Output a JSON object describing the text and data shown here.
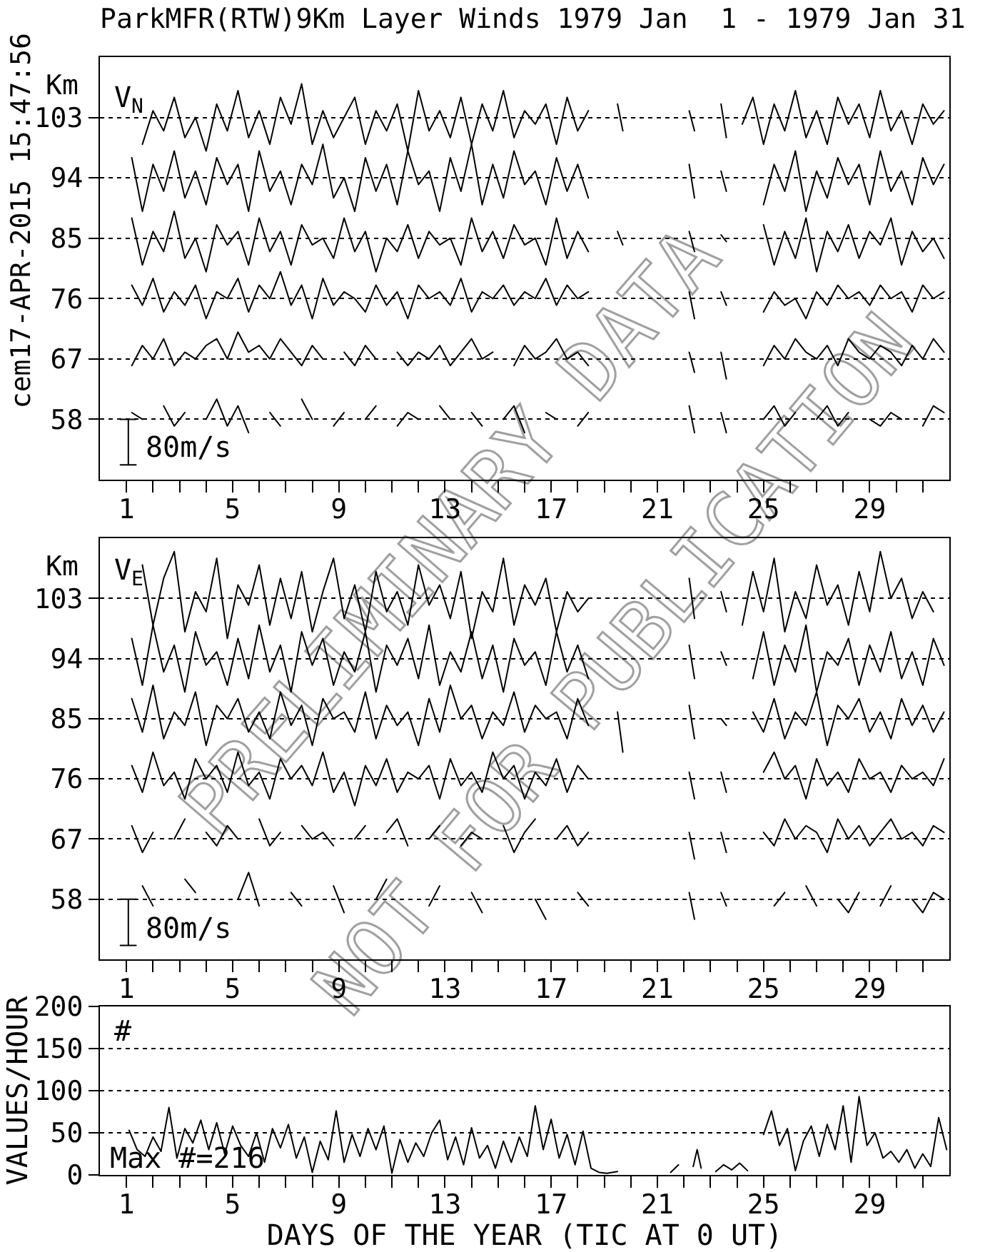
{
  "chart_data": [
    {
      "type": "line",
      "title": "ParkMFR(RTW)9Km Layer Winds 1979 Jan  1 - 1979 Jan 31",
      "ylabel": "Km",
      "grid": "y",
      "annotations": [
        "V$_{N}$",
        "cem17-APR-2015 15:47:56",
        "80m/s"
      ],
      "xlim": [
        0,
        32
      ],
      "ylim": [
        49,
        112
      ],
      "yticks": [
        58,
        67,
        76,
        85,
        94,
        103
      ],
      "xticks": [
        1,
        {
          "value": 2,
          "label": null
        },
        {
          "value": 3,
          "label": null
        },
        {
          "value": 4,
          "label": null
        },
        5,
        {
          "value": 6,
          "label": null
        },
        {
          "value": 7,
          "label": null
        },
        {
          "value": 8,
          "label": null
        },
        9,
        {
          "value": 10,
          "label": null
        },
        {
          "value": 11,
          "label": null
        },
        {
          "value": 12,
          "label": null
        },
        13,
        {
          "value": 14,
          "label": null
        },
        {
          "value": 15,
          "label": null
        },
        {
          "value": 16,
          "label": null
        },
        17,
        {
          "value": 18,
          "label": null
        },
        {
          "value": 19,
          "label": null
        },
        {
          "value": 20,
          "label": null
        },
        21,
        {
          "value": 22,
          "label": null
        },
        {
          "value": 23,
          "label": null
        },
        {
          "value": 24,
          "label": null
        },
        25,
        {
          "value": 26,
          "label": null
        },
        {
          "value": 27,
          "label": null
        },
        {
          "value": 28,
          "label": null
        },
        29,
        {
          "value": 30,
          "label": null
        },
        {
          "value": 31,
          "label": null
        }
      ],
      "x": [
        1.2,
        1.6,
        2.0,
        2.4,
        2.8,
        3.2,
        3.6,
        4.0,
        4.4,
        4.8,
        5.2,
        5.6,
        6.0,
        6.4,
        6.8,
        7.2,
        7.6,
        8.0,
        8.4,
        8.8,
        9.2,
        9.6,
        10.0,
        10.4,
        10.8,
        11.2,
        11.6,
        12.0,
        12.4,
        12.8,
        13.2,
        13.6,
        14.0,
        14.4,
        14.8,
        15.2,
        15.6,
        16.0,
        16.4,
        16.8,
        17.2,
        17.6,
        18.0,
        18.4,
        19.0,
        19.5,
        19.7,
        21.0,
        22.2,
        22.4,
        23.0,
        23.4,
        23.6,
        23.9,
        24.2,
        24.6,
        25.0,
        25.4,
        25.8,
        26.2,
        26.6,
        27.0,
        27.4,
        27.8,
        28.2,
        28.6,
        29.0,
        29.4,
        29.8,
        30.2,
        30.6,
        31.0,
        31.4,
        31.8
      ],
      "series": [
        {
          "color": "#000000",
          "values": [
            null,
            99,
            104,
            101,
            106,
            100,
            103,
            98,
            105,
            101,
            107,
            100,
            104,
            99,
            106,
            102,
            108,
            99,
            104,
            100,
            103,
            106,
            99,
            104,
            101,
            105,
            98,
            107,
            101,
            104,
            100,
            106,
            99,
            105,
            101,
            107,
            100,
            104,
            102,
            105,
            99,
            106,
            101,
            104,
            null,
            105,
            101,
            null,
            104,
            101,
            null,
            105,
            100,
            null,
            102,
            106,
            99,
            105,
            101,
            107,
            100,
            104,
            99,
            106,
            102,
            105,
            100,
            107,
            101,
            104,
            99,
            105,
            102,
            104
          ]
        },
        {
          "color": "#000000",
          "values": [
            97,
            89,
            96,
            92,
            98,
            91,
            95,
            90,
            97,
            93,
            96,
            89,
            98,
            92,
            95,
            90,
            96,
            93,
            99,
            91,
            94,
            89,
            97,
            92,
            96,
            90,
            98,
            93,
            95,
            89,
            97,
            92,
            99,
            90,
            96,
            91,
            98,
            93,
            95,
            90,
            97,
            92,
            96,
            91,
            null,
            null,
            null,
            null,
            96,
            91,
            null,
            95,
            92,
            null,
            null,
            null,
            90,
            96,
            92,
            98,
            89,
            95,
            91,
            97,
            93,
            96,
            90,
            98,
            92,
            95,
            90,
            97,
            93,
            96
          ]
        },
        {
          "color": "#000000",
          "values": [
            88,
            81,
            86,
            83,
            89,
            82,
            85,
            80,
            87,
            84,
            86,
            81,
            88,
            83,
            86,
            81,
            87,
            84,
            85,
            82,
            88,
            83,
            86,
            80,
            85,
            83,
            87,
            82,
            86,
            84,
            85,
            81,
            88,
            83,
            86,
            82,
            87,
            84,
            85,
            81,
            88,
            82,
            86,
            83,
            null,
            86,
            84,
            null,
            86,
            83,
            null,
            85.5,
            84.5,
            null,
            null,
            null,
            87,
            81,
            86,
            82,
            88,
            80,
            86,
            83,
            87,
            82,
            86,
            84,
            88,
            81,
            86,
            83,
            85,
            82
          ]
        },
        {
          "color": "#000000",
          "values": [
            78,
            75,
            79,
            74,
            77,
            75,
            78,
            73,
            77,
            76,
            79,
            74,
            78,
            76,
            80,
            75,
            78,
            73,
            79,
            75,
            77,
            76,
            74,
            78,
            75,
            77,
            73,
            78,
            76,
            77,
            75,
            79,
            74,
            77,
            76,
            78,
            75,
            77,
            76,
            79,
            75,
            78,
            76,
            77,
            null,
            null,
            null,
            null,
            77,
            73,
            null,
            77,
            75,
            null,
            null,
            null,
            74,
            77,
            75,
            76,
            73,
            77,
            75,
            78,
            76,
            77,
            75,
            78,
            76,
            77,
            74,
            78,
            76,
            77
          ]
        },
        {
          "color": "#000000",
          "values": [
            66,
            69,
            67,
            70,
            66,
            68,
            67,
            69,
            70,
            67,
            71,
            68,
            69,
            67,
            70,
            68,
            66,
            69,
            67,
            null,
            68,
            66,
            69,
            67,
            null,
            68,
            66,
            68,
            67,
            69,
            66,
            68,
            70,
            67,
            68,
            null,
            66,
            69,
            67,
            68,
            70,
            67,
            68,
            66,
            null,
            null,
            null,
            null,
            68,
            65,
            null,
            68,
            64,
            null,
            null,
            null,
            66,
            69,
            67,
            70,
            68,
            67,
            69,
            66,
            70,
            68,
            67,
            69,
            68,
            66,
            69,
            67,
            70,
            68
          ]
        },
        {
          "color": "#000000",
          "values": [
            59,
            58,
            null,
            60,
            57,
            59,
            null,
            58,
            61,
            57,
            60,
            56,
            null,
            59,
            57,
            null,
            61,
            58,
            null,
            57,
            59,
            null,
            58,
            60,
            null,
            57,
            59,
            58,
            null,
            60,
            58,
            null,
            59,
            57,
            null,
            58,
            60,
            56,
            null,
            59,
            58,
            null,
            57,
            59,
            null,
            null,
            null,
            null,
            60,
            56,
            null,
            59,
            56,
            null,
            null,
            null,
            58,
            60,
            57,
            59,
            null,
            58,
            60,
            57,
            59,
            null,
            58,
            57,
            59,
            58,
            null,
            57,
            60,
            59
          ]
        },
        {
          "color": "#000000",
          "x": [
            0.77,
            1.36,
            1.07,
            1.07,
            0.77,
            1.36
          ],
          "values": [
            58,
            58,
            58,
            51.2,
            51.2,
            51.2
          ]
        }
      ]
    },
    {
      "type": "line",
      "ylabel": "Km",
      "grid": "y",
      "annotations": [
        "V$_{E}$",
        "PRELIMINARY DATA",
        "NOT FOR PUBLICATION",
        "80m/s"
      ],
      "xlim": [
        0,
        32
      ],
      "ylim": [
        49,
        112
      ],
      "yticks": [
        58,
        67,
        76,
        85,
        94,
        103
      ],
      "xticks": [
        1,
        {
          "value": 2,
          "label": null
        },
        {
          "value": 3,
          "label": null
        },
        {
          "value": 4,
          "label": null
        },
        5,
        {
          "value": 6,
          "label": null
        },
        {
          "value": 7,
          "label": null
        },
        {
          "value": 8,
          "label": null
        },
        9,
        {
          "value": 10,
          "label": null
        },
        {
          "value": 11,
          "label": null
        },
        {
          "value": 12,
          "label": null
        },
        13,
        {
          "value": 14,
          "label": null
        },
        {
          "value": 15,
          "label": null
        },
        {
          "value": 16,
          "label": null
        },
        17,
        {
          "value": 18,
          "label": null
        },
        {
          "value": 19,
          "label": null
        },
        {
          "value": 20,
          "label": null
        },
        21,
        {
          "value": 22,
          "label": null
        },
        {
          "value": 23,
          "label": null
        },
        {
          "value": 24,
          "label": null
        },
        25,
        {
          "value": 26,
          "label": null
        },
        {
          "value": 27,
          "label": null
        },
        {
          "value": 28,
          "label": null
        },
        29,
        {
          "value": 30,
          "label": null
        },
        {
          "value": 31,
          "label": null
        }
      ],
      "x": [
        1.2,
        1.6,
        2.0,
        2.4,
        2.8,
        3.2,
        3.6,
        4.0,
        4.4,
        4.8,
        5.2,
        5.6,
        6.0,
        6.4,
        6.8,
        7.2,
        7.6,
        8.0,
        8.4,
        8.8,
        9.2,
        9.6,
        10.0,
        10.4,
        10.8,
        11.2,
        11.6,
        12.0,
        12.4,
        12.8,
        13.2,
        13.6,
        14.0,
        14.4,
        14.8,
        15.2,
        15.6,
        16.0,
        16.4,
        16.8,
        17.2,
        17.6,
        18.0,
        18.4,
        19.0,
        19.5,
        19.7,
        21.0,
        22.2,
        22.4,
        23.0,
        23.4,
        23.6,
        23.9,
        24.2,
        24.6,
        25.0,
        25.4,
        25.8,
        26.2,
        26.6,
        27.0,
        27.4,
        27.8,
        28.2,
        28.6,
        29.0,
        29.4,
        29.8,
        30.2,
        30.6,
        31.0,
        31.4,
        31.8
      ],
      "series": [
        {
          "color": "#000000",
          "values": [
            null,
            108,
            99,
            106,
            110,
            98,
            104,
            101,
            109,
            97,
            105,
            102,
            108,
            99,
            106,
            100,
            107,
            98,
            104,
            109,
            100,
            105,
            98,
            107,
            101,
            104,
            99,
            108,
            102,
            105,
            100,
            107,
            97,
            104,
            101,
            109,
            99,
            105,
            102,
            106,
            98,
            104,
            101,
            103,
            null,
            null,
            null,
            null,
            106,
            100,
            null,
            104,
            101,
            null,
            99,
            107,
            101,
            109,
            98,
            104,
            100,
            108,
            102,
            105,
            99,
            107,
            101,
            110,
            103,
            106,
            100,
            104,
            101,
            null
          ]
        },
        {
          "color": "#000000",
          "values": [
            97,
            90,
            99,
            92,
            96,
            89,
            98,
            93,
            95,
            90,
            97,
            91,
            99,
            92,
            96,
            89,
            98,
            93,
            97,
            90,
            95,
            92,
            98,
            89,
            96,
            93,
            97,
            91,
            99,
            90,
            95,
            92,
            98,
            91,
            96,
            89,
            97,
            93,
            95,
            90,
            98,
            92,
            96,
            91,
            null,
            null,
            null,
            null,
            96,
            91,
            null,
            95,
            93,
            null,
            null,
            91,
            98,
            90,
            96,
            92,
            99,
            89,
            95,
            93,
            97,
            90,
            96,
            92,
            98,
            91,
            95,
            90,
            97,
            93
          ]
        },
        {
          "color": "#000000",
          "values": [
            88,
            83,
            90,
            82,
            86,
            84,
            89,
            81,
            87,
            85,
            88,
            83,
            86,
            82,
            89,
            84,
            87,
            81,
            88,
            85,
            86,
            83,
            89,
            82,
            87,
            84,
            86,
            81,
            88,
            83,
            90,
            85,
            87,
            82,
            86,
            84,
            89,
            83,
            87,
            85,
            86,
            82,
            88,
            84,
            null,
            86,
            80,
            null,
            87,
            82,
            null,
            85,
            84,
            null,
            null,
            86,
            83,
            88,
            82,
            86,
            84,
            89,
            81,
            87,
            85,
            88,
            83,
            86,
            82,
            88,
            84,
            87,
            83,
            86
          ]
        },
        {
          "color": "#000000",
          "values": [
            78,
            74,
            80,
            75,
            77,
            73,
            79,
            76,
            78,
            74,
            80,
            75,
            77,
            73,
            79,
            76,
            78,
            75,
            80,
            74,
            77,
            72,
            78,
            75,
            79,
            74,
            77,
            76,
            78,
            73,
            79,
            75,
            77,
            74,
            80,
            76,
            78,
            73,
            77,
            75,
            79,
            74,
            78,
            76,
            null,
            null,
            null,
            null,
            77,
            73,
            null,
            77,
            74,
            null,
            null,
            null,
            77,
            80,
            76,
            78,
            73,
            79,
            75,
            77,
            74,
            79,
            76,
            77,
            74,
            78,
            76,
            77,
            75,
            79
          ]
        },
        {
          "color": "#000000",
          "values": [
            69,
            65,
            68,
            null,
            67,
            70,
            null,
            68,
            66,
            69,
            67,
            null,
            70,
            66,
            68,
            null,
            69,
            67,
            68,
            66,
            null,
            67,
            69,
            null,
            68,
            70,
            66,
            null,
            67,
            69,
            null,
            66,
            68,
            67,
            null,
            69,
            65,
            68,
            70,
            null,
            67,
            69,
            66,
            68,
            null,
            null,
            null,
            null,
            68,
            64,
            null,
            68,
            65,
            null,
            null,
            null,
            68,
            66,
            70,
            67,
            69,
            68,
            65,
            70,
            67,
            69,
            66,
            68,
            70,
            67,
            68,
            66,
            69,
            68
          ]
        },
        {
          "color": "#000000",
          "values": [
            null,
            60,
            57,
            null,
            null,
            61,
            59,
            null,
            null,
            null,
            58,
            62,
            57,
            null,
            null,
            59,
            57,
            null,
            null,
            60,
            56,
            null,
            null,
            58,
            61,
            null,
            null,
            null,
            57,
            60,
            null,
            null,
            59,
            56,
            null,
            null,
            null,
            null,
            58,
            55,
            null,
            null,
            59,
            57,
            null,
            null,
            null,
            null,
            59,
            55,
            null,
            59,
            57,
            null,
            null,
            null,
            null,
            57,
            59,
            null,
            60,
            57,
            null,
            58,
            56,
            59,
            null,
            57,
            60,
            null,
            58,
            56,
            59,
            58
          ]
        },
        {
          "color": "#000000",
          "x": [
            0.77,
            1.36,
            1.07,
            1.07,
            0.77,
            1.36
          ],
          "values": [
            58,
            58,
            58,
            51.1,
            51.1,
            51.1
          ]
        }
      ]
    },
    {
      "type": "line",
      "ylabel": "VALUES/HOUR",
      "xlabel": "DAYS OF THE YEAR (TIC AT 0 UT)",
      "grid": "y",
      "annotations": [
        "#",
        "Max #=216"
      ],
      "xlim": [
        0,
        32
      ],
      "ylim": [
        0,
        200
      ],
      "yticks": [
        0,
        50,
        100,
        150,
        200
      ],
      "xticks": [
        1,
        {
          "value": 2,
          "label": null
        },
        {
          "value": 3,
          "label": null
        },
        {
          "value": 4,
          "label": null
        },
        5,
        {
          "value": 6,
          "label": null
        },
        {
          "value": 7,
          "label": null
        },
        {
          "value": 8,
          "label": null
        },
        9,
        {
          "value": 10,
          "label": null
        },
        {
          "value": 11,
          "label": null
        },
        {
          "value": 12,
          "label": null
        },
        13,
        {
          "value": 14,
          "label": null
        },
        {
          "value": 15,
          "label": null
        },
        {
          "value": 16,
          "label": null
        },
        17,
        {
          "value": 18,
          "label": null
        },
        {
          "value": 19,
          "label": null
        },
        {
          "value": 20,
          "label": null
        },
        21,
        {
          "value": 22,
          "label": null
        },
        {
          "value": 23,
          "label": null
        },
        {
          "value": 24,
          "label": null
        },
        25,
        {
          "value": 26,
          "label": null
        },
        {
          "value": 27,
          "label": null
        },
        {
          "value": 28,
          "label": null
        },
        29,
        {
          "value": 30,
          "label": null
        },
        {
          "value": 31,
          "label": null
        }
      ],
      "series": [
        {
          "color": "#000000",
          "x": [
            1.1,
            1.4,
            1.7,
            2.0,
            2.3,
            2.6,
            2.9,
            3.2,
            3.5,
            3.8,
            4.1,
            4.4,
            4.7,
            5.0,
            5.3,
            5.6,
            5.9,
            6.2,
            6.5,
            6.8,
            7.1,
            7.4,
            7.7,
            8.0,
            8.3,
            8.6,
            8.9,
            9.2,
            9.5,
            9.8,
            10.1,
            10.4,
            10.7,
            11.0,
            11.3,
            11.6,
            11.9,
            12.2,
            12.5,
            12.8,
            13.1,
            13.4,
            13.7,
            14.0,
            14.3,
            14.6,
            14.9,
            15.2,
            15.5,
            15.8,
            16.1,
            16.4,
            16.7,
            17.0,
            17.3,
            17.6,
            17.9,
            18.2,
            18.5,
            18.8,
            19.1,
            19.5,
            20.0,
            21.5,
            21.8,
            22.0,
            22.35,
            22.5,
            22.65,
            23.0,
            23.2,
            23.5,
            23.8,
            24.1,
            24.4,
            24.7,
            25.0,
            25.3,
            25.6,
            25.9,
            26.2,
            26.5,
            26.8,
            27.1,
            27.4,
            27.7,
            28.0,
            28.3,
            28.6,
            28.9,
            29.2,
            29.5,
            29.8,
            30.1,
            30.4,
            30.7,
            31.0,
            31.3,
            31.6,
            31.9
          ],
          "values": [
            53,
            30,
            22,
            45,
            28,
            80,
            20,
            55,
            38,
            65,
            30,
            62,
            25,
            58,
            35,
            22,
            50,
            15,
            55,
            32,
            60,
            20,
            45,
            3,
            40,
            18,
            76,
            15,
            48,
            22,
            55,
            30,
            58,
            2,
            42,
            15,
            38,
            22,
            50,
            65,
            18,
            45,
            12,
            56,
            20,
            35,
            8,
            40,
            15,
            45,
            22,
            82,
            30,
            66,
            20,
            48,
            12,
            52,
            8,
            3,
            2,
            4,
            null,
            3,
            12,
            null,
            10,
            30,
            8,
            null,
            4,
            12,
            6,
            14,
            5,
            null,
            48,
            76,
            35,
            55,
            5,
            40,
            58,
            22,
            60,
            30,
            82,
            15,
            93,
            35,
            50,
            20,
            28,
            15,
            30,
            8,
            25,
            10,
            68,
            30
          ]
        }
      ]
    }
  ]
}
